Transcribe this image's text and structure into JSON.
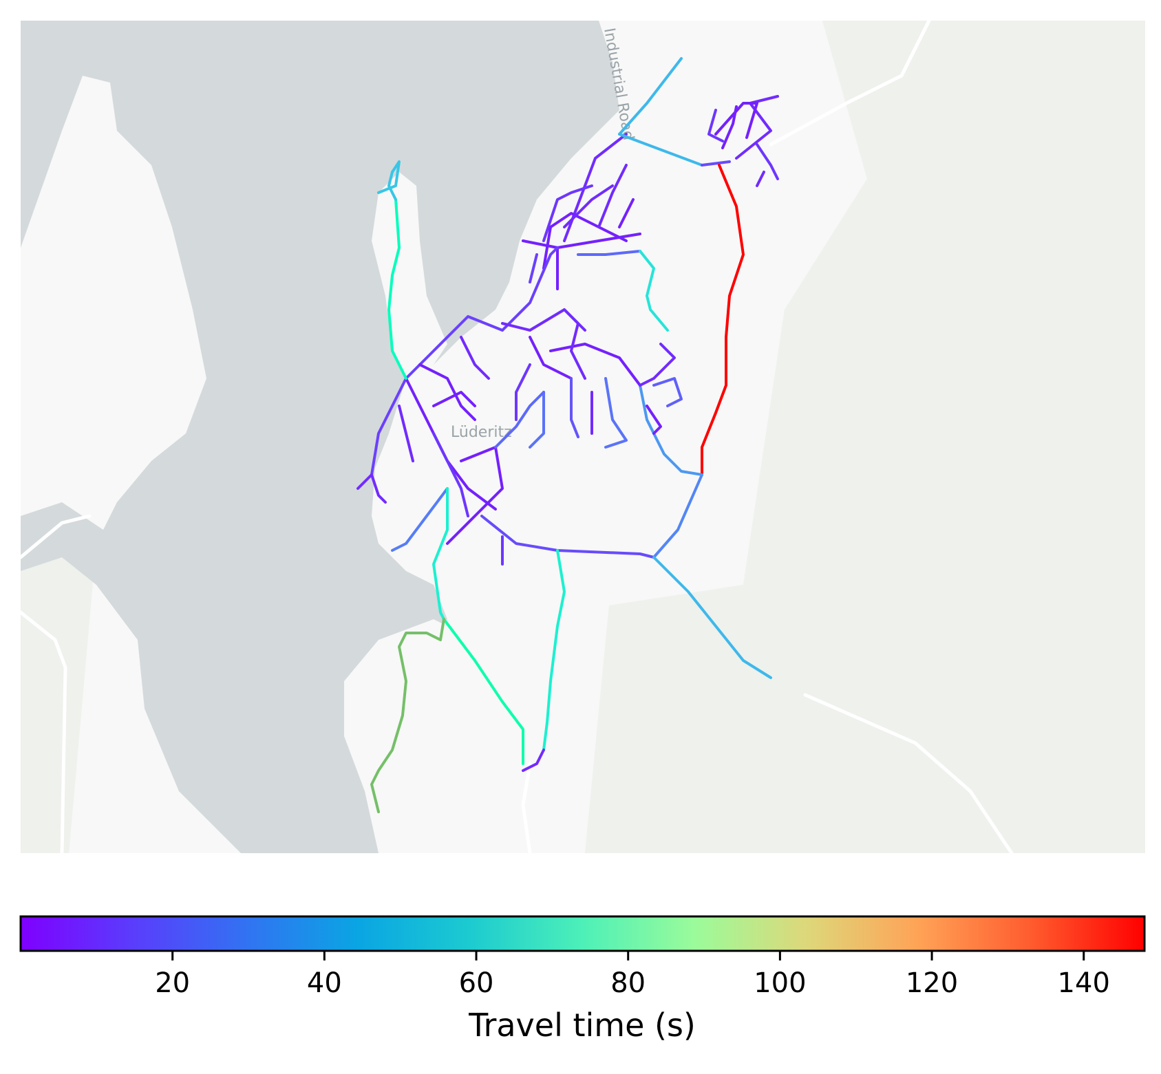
{
  "map": {
    "place_label": "Lüderitz",
    "road_label": "Industrial Road",
    "colors": {
      "sea": "#d4d9dc",
      "land": "#f7f8f7",
      "park": "#eef1ec",
      "basemap_road": "#ffffff"
    }
  },
  "colorbar": {
    "label": "Travel time (s)",
    "min": 0,
    "max": 148,
    "ticks": [
      "20",
      "40",
      "60",
      "80",
      "100",
      "120",
      "140"
    ],
    "tick_values": [
      20,
      40,
      60,
      80,
      100,
      120,
      140
    ],
    "colormap": "rainbow"
  }
}
